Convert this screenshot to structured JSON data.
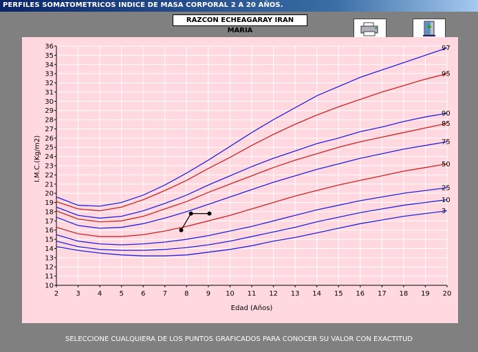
{
  "window": {
    "title": "PERFILES SOMATOMETRICOS INDICE DE MASA CORPORAL 2 A 20 AÑOS."
  },
  "patient": {
    "name": "RAZCON ECHEAGARAY IRAN MARIA"
  },
  "toolbar": {
    "print_icon": "printer-icon",
    "exit_icon": "exit-door-icon"
  },
  "footer": {
    "hint": "SELECCIONE CUALQUIERA DE LOS PUNTOS GRAFICADOS PARA CONOCER SU VALOR CON EXACTITUD"
  },
  "colors": {
    "plot_bg": "#ffd8e0",
    "blue": "#2020e0",
    "red": "#d02020",
    "grid": "#ffffff"
  },
  "chart_data": {
    "type": "line",
    "title": "",
    "xlabel": "Edad (Años)",
    "ylabel": "I.M.C.(Kg/m2)",
    "xlim": [
      2,
      20
    ],
    "ylim": [
      10,
      36
    ],
    "xticks": [
      "2",
      "3",
      "4",
      "5",
      "6",
      "7",
      "8",
      "9",
      "10",
      "11",
      "12",
      "13",
      "14",
      "15",
      "16",
      "17",
      "18",
      "19",
      "20"
    ],
    "yticks": [
      "10",
      "11",
      "12",
      "13",
      "14",
      "15",
      "16",
      "17",
      "18",
      "19",
      "20",
      "21",
      "22",
      "23",
      "24",
      "25",
      "26",
      "27",
      "28",
      "29",
      "30",
      "31",
      "32",
      "33",
      "34",
      "35",
      "36"
    ],
    "grid": true,
    "x": [
      2,
      3,
      4,
      5,
      6,
      7,
      8,
      9,
      10,
      11,
      12,
      13,
      14,
      15,
      16,
      17,
      18,
      19,
      20
    ],
    "series": [
      {
        "name": "97",
        "color": "blue",
        "values": [
          19.6,
          18.7,
          18.6,
          19.0,
          19.8,
          20.9,
          22.2,
          23.6,
          25.1,
          26.6,
          28.0,
          29.3,
          30.6,
          31.6,
          32.6,
          33.4,
          34.2,
          35.0,
          35.8
        ]
      },
      {
        "name": "95",
        "color": "red",
        "values": [
          19.1,
          18.3,
          18.1,
          18.5,
          19.3,
          20.3,
          21.4,
          22.7,
          23.9,
          25.2,
          26.4,
          27.5,
          28.5,
          29.4,
          30.2,
          31.0,
          31.7,
          32.4,
          33.0
        ]
      },
      {
        "name": "90",
        "color": "blue",
        "values": [
          18.5,
          17.6,
          17.3,
          17.5,
          18.1,
          18.9,
          19.8,
          20.9,
          21.9,
          22.9,
          23.8,
          24.6,
          25.4,
          26.0,
          26.7,
          27.2,
          27.8,
          28.3,
          28.7
        ]
      },
      {
        "name": "85",
        "color": "red",
        "values": [
          18.1,
          17.2,
          16.9,
          17.0,
          17.5,
          18.3,
          19.1,
          20.1,
          21.0,
          21.9,
          22.8,
          23.6,
          24.3,
          25.0,
          25.6,
          26.1,
          26.6,
          27.1,
          27.6
        ]
      },
      {
        "name": "75",
        "color": "blue",
        "values": [
          17.4,
          16.5,
          16.2,
          16.3,
          16.7,
          17.3,
          18.0,
          18.8,
          19.6,
          20.4,
          21.2,
          21.9,
          22.6,
          23.2,
          23.8,
          24.3,
          24.8,
          25.2,
          25.6
        ]
      },
      {
        "name": "50",
        "color": "red",
        "values": [
          16.3,
          15.6,
          15.3,
          15.3,
          15.5,
          15.9,
          16.4,
          17.0,
          17.6,
          18.3,
          19.0,
          19.7,
          20.3,
          20.9,
          21.4,
          21.9,
          22.4,
          22.8,
          23.2
        ]
      },
      {
        "name": "25",
        "color": "blue",
        "values": [
          15.5,
          14.8,
          14.5,
          14.4,
          14.5,
          14.7,
          15.0,
          15.4,
          15.9,
          16.4,
          17.0,
          17.6,
          18.2,
          18.7,
          19.2,
          19.6,
          20.0,
          20.3,
          20.6
        ]
      },
      {
        "name": "10",
        "color": "blue",
        "values": [
          14.8,
          14.2,
          13.9,
          13.8,
          13.8,
          13.9,
          14.1,
          14.4,
          14.8,
          15.3,
          15.8,
          16.3,
          16.9,
          17.4,
          17.9,
          18.3,
          18.7,
          19.0,
          19.3
        ]
      },
      {
        "name": "3",
        "color": "blue",
        "values": [
          14.2,
          13.8,
          13.5,
          13.3,
          13.2,
          13.2,
          13.3,
          13.6,
          13.9,
          14.3,
          14.8,
          15.2,
          15.7,
          16.2,
          16.7,
          17.1,
          17.5,
          17.8,
          18.1
        ]
      }
    ],
    "patient_points": [
      {
        "x": 7.75,
        "y": 16.0
      },
      {
        "x": 8.2,
        "y": 17.8
      },
      {
        "x": 9.05,
        "y": 17.8
      }
    ]
  }
}
